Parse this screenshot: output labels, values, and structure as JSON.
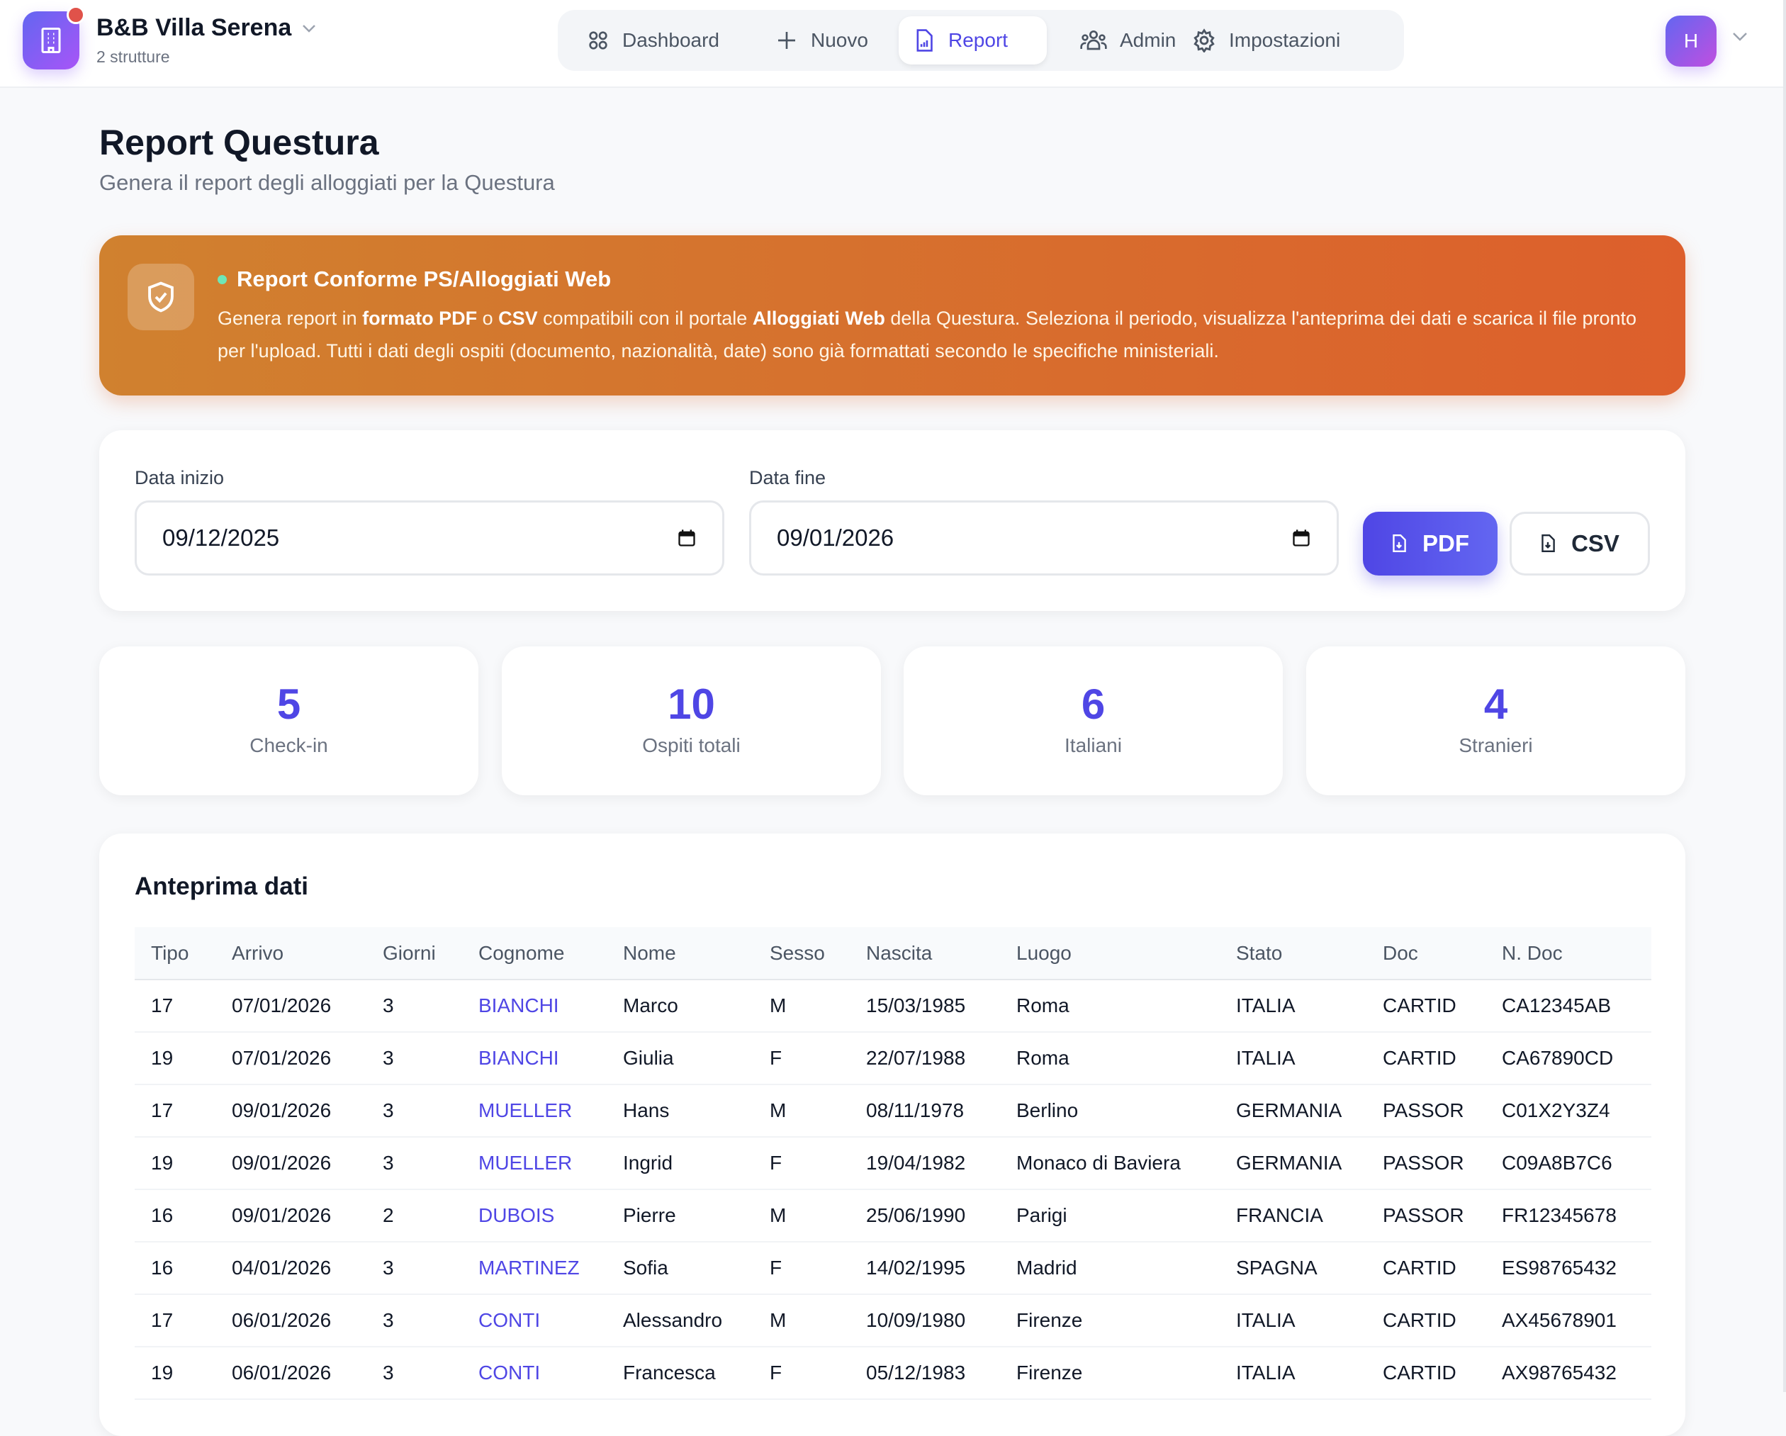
{
  "header": {
    "brand": "B&B Villa Serena",
    "sub": "2 strutture",
    "avatar": "H",
    "nav": [
      {
        "label": "Dashboard",
        "icon": "grid-icon"
      },
      {
        "label": "Nuovo",
        "icon": "plus-icon"
      },
      {
        "label": "Report",
        "icon": "report-icon",
        "active": true
      },
      {
        "label": "Admin",
        "icon": "users-icon"
      },
      {
        "label": "Impostazioni",
        "icon": "gear-icon"
      }
    ]
  },
  "page": {
    "title": "Report Questura",
    "subtitle": "Genera il report degli alloggiati per la Questura"
  },
  "banner": {
    "title": "Report Conforme PS/Alloggiati Web",
    "t1": "Genera report in ",
    "b1": "formato PDF",
    "t2": " o ",
    "b2": "CSV",
    "t3": " compatibili con il portale ",
    "b3": "Alloggiati Web",
    "t4": " della Questura. Seleziona il periodo, visualizza l'anteprima dei dati e scarica il file pronto per l'upload. Tutti i dati degli ospiti (documento, nazionalità, date) sono già formattati secondo le specifiche ministeriali.",
    "colors": [
      "#d0812f",
      "#dd5f2c"
    ]
  },
  "filters": {
    "start_label": "Data inizio",
    "start_value": "09/12/2025",
    "end_label": "Data fine",
    "end_value": "09/01/2026",
    "pdf": "PDF",
    "csv": "CSV"
  },
  "stats": [
    {
      "value": "5",
      "label": "Check-in"
    },
    {
      "value": "10",
      "label": "Ospiti totali"
    },
    {
      "value": "6",
      "label": "Italiani"
    },
    {
      "value": "4",
      "label": "Stranieri"
    }
  ],
  "preview": {
    "title": "Anteprima dati",
    "columns": [
      "Tipo",
      "Arrivo",
      "Giorni",
      "Cognome",
      "Nome",
      "Sesso",
      "Nascita",
      "Luogo",
      "Stato",
      "Doc",
      "N. Doc"
    ],
    "rows": [
      [
        "17",
        "07/01/2026",
        "3",
        "BIANCHI",
        "Marco",
        "M",
        "15/03/1985",
        "Roma",
        "ITALIA",
        "CARTID",
        "CA12345AB"
      ],
      [
        "19",
        "07/01/2026",
        "3",
        "BIANCHI",
        "Giulia",
        "F",
        "22/07/1988",
        "Roma",
        "ITALIA",
        "CARTID",
        "CA67890CD"
      ],
      [
        "17",
        "09/01/2026",
        "3",
        "MUELLER",
        "Hans",
        "M",
        "08/11/1978",
        "Berlino",
        "GERMANIA",
        "PASSOR",
        "C01X2Y3Z4"
      ],
      [
        "19",
        "09/01/2026",
        "3",
        "MUELLER",
        "Ingrid",
        "F",
        "19/04/1982",
        "Monaco di Baviera",
        "GERMANIA",
        "PASSOR",
        "C09A8B7C6"
      ],
      [
        "16",
        "09/01/2026",
        "2",
        "DUBOIS",
        "Pierre",
        "M",
        "25/06/1990",
        "Parigi",
        "FRANCIA",
        "PASSOR",
        "FR12345678"
      ],
      [
        "16",
        "04/01/2026",
        "3",
        "MARTINEZ",
        "Sofia",
        "F",
        "14/02/1995",
        "Madrid",
        "SPAGNA",
        "CARTID",
        "ES98765432"
      ],
      [
        "17",
        "06/01/2026",
        "3",
        "CONTI",
        "Alessandro",
        "M",
        "10/09/1980",
        "Firenze",
        "ITALIA",
        "CARTID",
        "AX45678901"
      ],
      [
        "19",
        "06/01/2026",
        "3",
        "CONTI",
        "Francesca",
        "F",
        "05/12/1983",
        "Firenze",
        "ITALIA",
        "CARTID",
        "AX98765432"
      ]
    ]
  },
  "accent": "#4f46e5"
}
